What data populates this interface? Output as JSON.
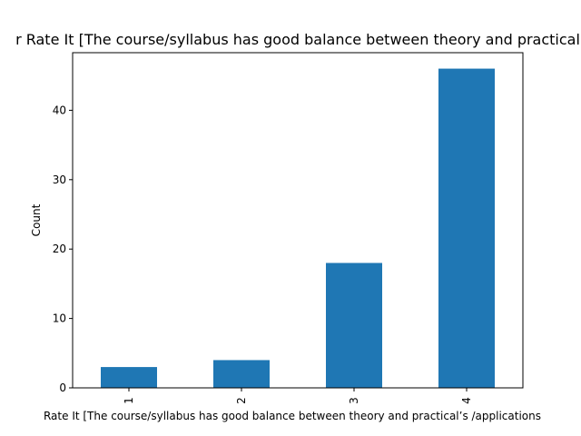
{
  "chart_data": {
    "type": "bar",
    "title": "r Rate It [The course/syllabus has good balance between theory and practical",
    "xlabel": "Rate It [The course/syllabus has good balance between theory and practical’s /applications",
    "ylabel": "Count",
    "categories": [
      "1",
      "2",
      "3",
      "4"
    ],
    "values": [
      3,
      4,
      18,
      46
    ],
    "ylim": [
      0,
      48.3
    ],
    "yticks": [
      0,
      10,
      20,
      30,
      40
    ],
    "grid": false,
    "legend": "none",
    "bar_color": "#1f77b4"
  }
}
